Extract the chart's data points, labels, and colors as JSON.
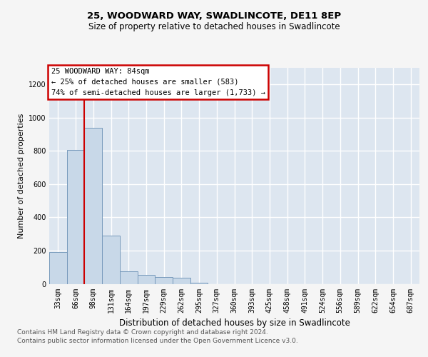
{
  "title1": "25, WOODWARD WAY, SWADLINCOTE, DE11 8EP",
  "title2": "Size of property relative to detached houses in Swadlincote",
  "xlabel": "Distribution of detached houses by size in Swadlincote",
  "ylabel": "Number of detached properties",
  "footnote1": "Contains HM Land Registry data © Crown copyright and database right 2024.",
  "footnote2": "Contains public sector information licensed under the Open Government Licence v3.0.",
  "annotation_line1": "25 WOODWARD WAY: 84sqm",
  "annotation_line2": "← 25% of detached houses are smaller (583)",
  "annotation_line3": "74% of semi-detached houses are larger (1,733) →",
  "bar_color": "#c8d8e8",
  "bar_edge_color": "#7799bb",
  "plot_bg_color": "#dde6f0",
  "grid_color": "#ffffff",
  "annotation_box_bg": "#ffffff",
  "annotation_box_edge": "#cc0000",
  "vline_color": "#cc0000",
  "fig_bg_color": "#f5f5f5",
  "categories": [
    "33sqm",
    "66sqm",
    "98sqm",
    "131sqm",
    "164sqm",
    "197sqm",
    "229sqm",
    "262sqm",
    "295sqm",
    "327sqm",
    "360sqm",
    "393sqm",
    "425sqm",
    "458sqm",
    "491sqm",
    "524sqm",
    "556sqm",
    "589sqm",
    "622sqm",
    "654sqm",
    "687sqm"
  ],
  "values": [
    190,
    805,
    940,
    290,
    75,
    55,
    40,
    35,
    5,
    0,
    0,
    0,
    0,
    0,
    0,
    0,
    0,
    0,
    0,
    0,
    0
  ],
  "ylim": [
    0,
    1300
  ],
  "yticks": [
    0,
    200,
    400,
    600,
    800,
    1000,
    1200
  ],
  "vline_x": 1.5,
  "title1_fontsize": 9.5,
  "title2_fontsize": 8.5,
  "ylabel_fontsize": 8,
  "xlabel_fontsize": 8.5,
  "tick_fontsize": 7,
  "annotation_fontsize": 7.5,
  "footnote_fontsize": 6.5
}
